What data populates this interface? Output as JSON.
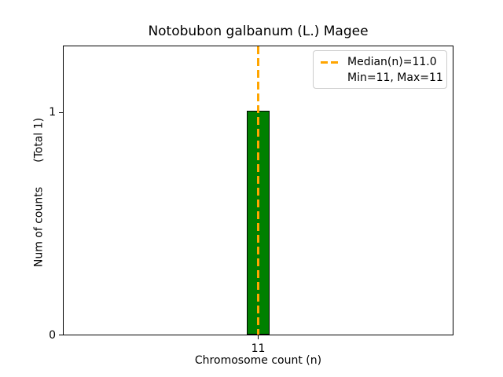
{
  "figure": {
    "background": "#ffffff"
  },
  "chart_data": {
    "type": "bar",
    "title": "Notobubon galbanum (L.) Magee",
    "xlabel": "Chromosome count (n)",
    "ylabel": "Num of counts       (Total 1)",
    "categories": [
      "11"
    ],
    "values": [
      1
    ],
    "total_counts": 1,
    "bar_color": "#008000",
    "bar_edge_color": "#000000",
    "median_line": {
      "value": 11.0,
      "color": "#FFA500",
      "style": "dashed",
      "orientation": "vertical"
    },
    "stats": {
      "median": 11.0,
      "min": 11,
      "max": 11
    },
    "legend": {
      "position": "upper right",
      "entries": [
        "Median(n)=11.0",
        "Min=11, Max=11"
      ]
    },
    "xticks": [
      "11"
    ],
    "yticks": [
      "0",
      "1"
    ],
    "ylim": [
      0,
      1.3
    ],
    "grid": false,
    "axes_facecolor": "#ffffff",
    "spine_color": "#000000"
  }
}
